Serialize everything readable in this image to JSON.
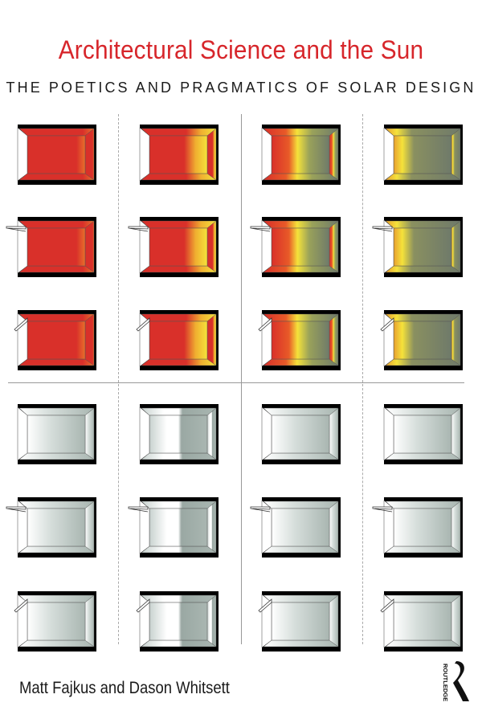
{
  "cover": {
    "title": "Architectural Science and the Sun",
    "subtitle": "THE POETICS AND PRAGMATICS OF SOLAR DESIGN",
    "authors": "Matt Fajkus and Dason Whitsett",
    "publisher": "ROUTLEDGE"
  },
  "colors": {
    "title": "#d7262b",
    "heat_red": "#d9302a",
    "heat_yellow": "#f5e23a",
    "heat_grey": "#6f7a6a",
    "light_grey": "#a9b6b1"
  },
  "room_grid": {
    "columns": 4,
    "rows": 6,
    "row_shading": [
      "none",
      "overhang",
      "angled-overhang",
      "none",
      "overhang",
      "angled-overhang"
    ],
    "column_styles_top": [
      "red",
      "red-yellow-back",
      "red-yellow-grey",
      "grey-yellow-window"
    ],
    "column_styles_bottom": [
      "light-soft",
      "light-sunpatch",
      "light-soft",
      "light-soft"
    ]
  }
}
